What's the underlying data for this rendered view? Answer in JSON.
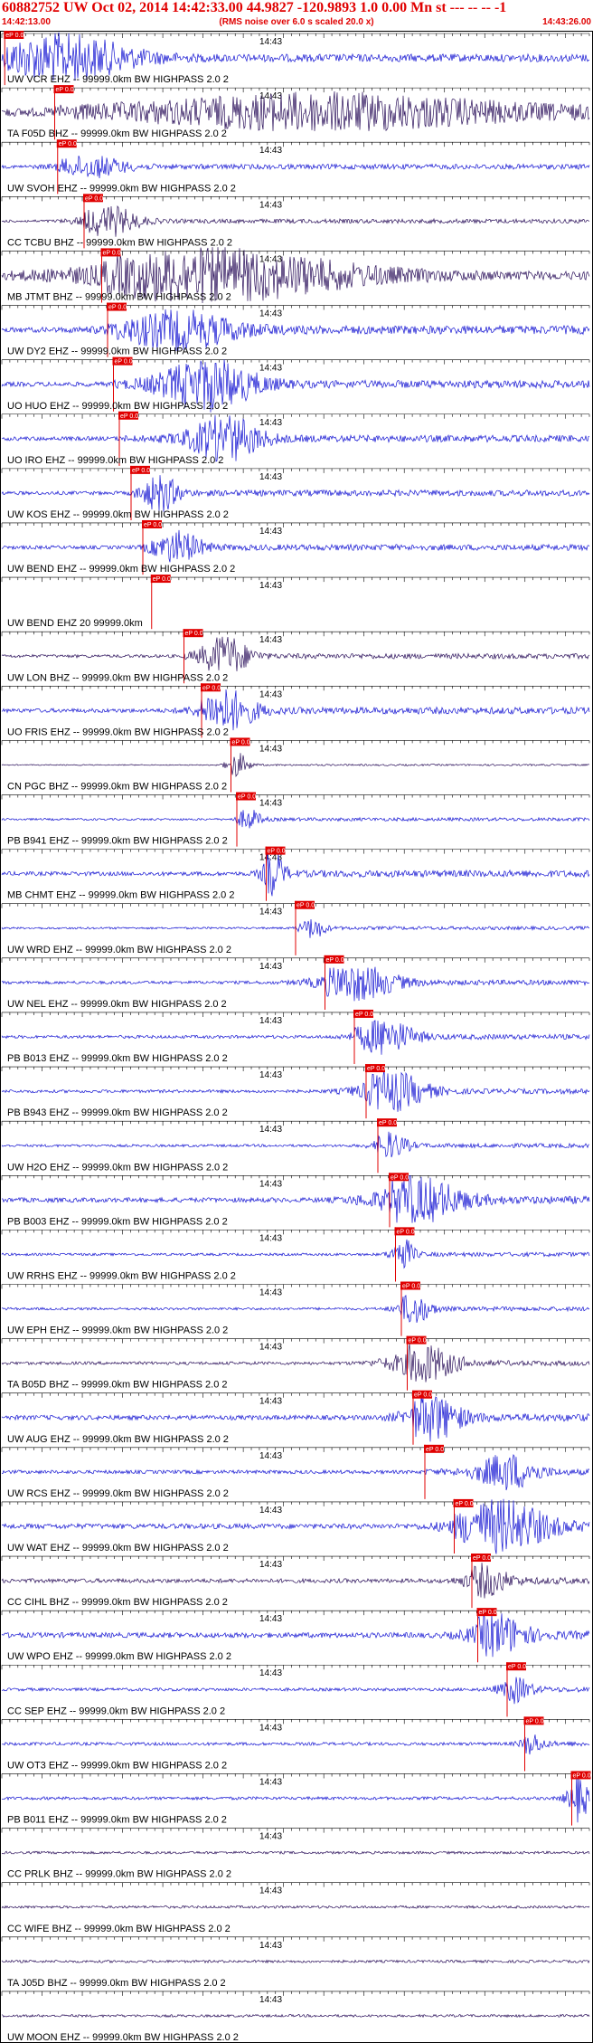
{
  "header": {
    "title": "60882752 UW Oct 02, 2014 14:42:33.00   44.9827 -120.9893  1.0 0.00 Mn st --- -- --  -1",
    "subtitle": "(RMS noise over 6.0 s scaled 20.0 x)",
    "start_time": "14:42:13.00",
    "end_time": "14:43:26.00"
  },
  "minute_marker": "14:43",
  "pick_label": "eP 0.0",
  "colors": {
    "trace_blue": "#1414d2",
    "trace_dark": "#2a0f5a",
    "pick_red": "#e00000",
    "axis": "#000000"
  },
  "traces": [
    {
      "label": "UW VCR EHZ -- 99999.0km BW  HIGHPASS  2.0  2",
      "color": "blue",
      "pick": 0.005,
      "amp": 0.45,
      "burst": [
        0.1,
        0.12,
        0.9
      ]
    },
    {
      "label": "TA F05D BHZ -- 99999.0km BW  HIGHPASS  2.0  2",
      "color": "dark",
      "pick": 0.09,
      "amp": 0.75,
      "burst": [
        0.55,
        0.3,
        0.6
      ]
    },
    {
      "label": "UW SVOH EHZ -- 99999.0km BW  HIGHPASS  2.0  2",
      "color": "blue",
      "pick": 0.095,
      "amp": 0.3,
      "burst": [
        0.15,
        0.06,
        0.4
      ]
    },
    {
      "label": "CC TCBU BHZ -- 99999.0km BW  HIGHPASS  2.0  2",
      "color": "dark",
      "pick": 0.14,
      "amp": 0.25,
      "burst": [
        0.18,
        0.05,
        0.6
      ]
    },
    {
      "label": "MB JTMT BHZ -- 99999.0km BW  HIGHPASS  2.0  2",
      "color": "dark",
      "pick": 0.17,
      "amp": 0.5,
      "burst": [
        0.35,
        0.25,
        1.0
      ]
    },
    {
      "label": "UW DY2 EHZ -- 99999.0km BW  HIGHPASS  2.0  2",
      "color": "blue",
      "pick": 0.18,
      "amp": 0.5,
      "burst": [
        0.3,
        0.1,
        0.7
      ]
    },
    {
      "label": "UO HUO EHZ -- 99999.0km BW  HIGHPASS  2.0  2",
      "color": "blue",
      "pick": 0.19,
      "amp": 0.45,
      "burst": [
        0.35,
        0.08,
        1.0
      ]
    },
    {
      "label": "UO IRO EHZ -- 99999.0km BW  HIGHPASS  2.0  2",
      "color": "blue",
      "pick": 0.2,
      "amp": 0.4,
      "burst": [
        0.38,
        0.06,
        0.9
      ]
    },
    {
      "label": "UW KOS EHZ -- 99999.0km BW  HIGHPASS  2.0  2",
      "color": "blue",
      "pick": 0.22,
      "amp": 0.35,
      "burst": [
        0.27,
        0.03,
        0.7
      ]
    },
    {
      "label": "UW BEND EHZ -- 99999.0km BW  HIGHPASS  2.0  2",
      "color": "blue",
      "pick": 0.24,
      "amp": 0.35,
      "burst": [
        0.3,
        0.04,
        0.6
      ]
    },
    {
      "label": "UW BEND EHZ 20 99999.0km",
      "color": "none",
      "pick": 0.255,
      "amp": 0.0,
      "burst": [
        0.3,
        0.04,
        0.0
      ]
    },
    {
      "label": "UW LON BHZ -- 99999.0km BW  HIGHPASS  2.0  2",
      "color": "dark",
      "pick": 0.31,
      "amp": 0.3,
      "burst": [
        0.38,
        0.04,
        0.8
      ]
    },
    {
      "label": "UO FRIS EHZ -- 99999.0km BW  HIGHPASS  2.0  2",
      "color": "blue",
      "pick": 0.34,
      "amp": 0.4,
      "burst": [
        0.38,
        0.05,
        0.8
      ]
    },
    {
      "label": "CN PGC BHZ -- 99999.0km BW  HIGHPASS  2.0  2",
      "color": "dark",
      "pick": 0.39,
      "amp": 0.1,
      "burst": [
        0.4,
        0.02,
        0.5
      ]
    },
    {
      "label": "PB B941 EHZ -- 99999.0km BW  HIGHPASS  2.0  2",
      "color": "blue",
      "pick": 0.4,
      "amp": 0.2,
      "burst": [
        0.42,
        0.02,
        0.4
      ]
    },
    {
      "label": "MB CHMT EHZ -- 99999.0km BW  HIGHPASS  2.0  2",
      "color": "blue",
      "pick": 0.45,
      "amp": 0.4,
      "burst": [
        0.46,
        0.02,
        0.9
      ]
    },
    {
      "label": "UW WRD EHZ -- 99999.0km BW  HIGHPASS  2.0  2",
      "color": "blue",
      "pick": 0.5,
      "amp": 0.2,
      "burst": [
        0.53,
        0.02,
        0.4
      ]
    },
    {
      "label": "UW NEL EHZ -- 99999.0km BW  HIGHPASS  2.0  2",
      "color": "blue",
      "pick": 0.55,
      "amp": 0.3,
      "burst": [
        0.6,
        0.07,
        0.7
      ]
    },
    {
      "label": "PB B013 EHZ -- 99999.0km BW  HIGHPASS  2.0  2",
      "color": "blue",
      "pick": 0.6,
      "amp": 0.3,
      "burst": [
        0.65,
        0.05,
        0.7
      ]
    },
    {
      "label": "PB B943 EHZ -- 99999.0km BW  HIGHPASS  2.0  2",
      "color": "blue",
      "pick": 0.62,
      "amp": 0.3,
      "burst": [
        0.66,
        0.06,
        0.8
      ]
    },
    {
      "label": "UW H2O EHZ -- 99999.0km BW  HIGHPASS  2.0  2",
      "color": "blue",
      "pick": 0.64,
      "amp": 0.25,
      "burst": [
        0.66,
        0.03,
        0.5
      ]
    },
    {
      "label": "PB B003 EHZ -- 99999.0km BW  HIGHPASS  2.0  2",
      "color": "blue",
      "pick": 0.66,
      "amp": 0.45,
      "burst": [
        0.7,
        0.08,
        0.9
      ]
    },
    {
      "label": "UW RRHS EHZ -- 99999.0km BW  HIGHPASS  2.0  2",
      "color": "blue",
      "pick": 0.67,
      "amp": 0.25,
      "burst": [
        0.68,
        0.02,
        0.7
      ]
    },
    {
      "label": "UW EPH EHZ -- 99999.0km BW  HIGHPASS  2.0  2",
      "color": "blue",
      "pick": 0.68,
      "amp": 0.25,
      "burst": [
        0.7,
        0.03,
        0.6
      ]
    },
    {
      "label": "TA B05D BHZ -- 99999.0km BW  HIGHPASS  2.0  2",
      "color": "dark",
      "pick": 0.69,
      "amp": 0.3,
      "burst": [
        0.71,
        0.06,
        0.8
      ]
    },
    {
      "label": "UW AUG EHZ -- 99999.0km BW  HIGHPASS  2.0  2",
      "color": "blue",
      "pick": 0.7,
      "amp": 0.45,
      "burst": [
        0.73,
        0.05,
        0.9
      ]
    },
    {
      "label": "UW RCS EHZ -- 99999.0km BW  HIGHPASS  2.0  2",
      "color": "blue",
      "pick": 0.72,
      "amp": 0.35,
      "burst": [
        0.86,
        0.05,
        0.7
      ]
    },
    {
      "label": "UW WAT EHZ -- 99999.0km BW  HIGHPASS  2.0  2",
      "color": "blue",
      "pick": 0.77,
      "amp": 0.5,
      "burst": [
        0.85,
        0.08,
        1.0
      ]
    },
    {
      "label": "CC CIHL BHZ -- 99999.0km BW  HIGHPASS  2.0  2",
      "color": "dark",
      "pick": 0.8,
      "amp": 0.4,
      "burst": [
        0.82,
        0.04,
        0.6
      ]
    },
    {
      "label": "UW WPO EHZ -- 99999.0km BW  HIGHPASS  2.0  2",
      "color": "blue",
      "pick": 0.81,
      "amp": 0.5,
      "burst": [
        0.84,
        0.05,
        0.8
      ]
    },
    {
      "label": "CC SEP EHZ -- 99999.0km BW  HIGHPASS  2.0  2",
      "color": "blue",
      "pick": 0.86,
      "amp": 0.3,
      "burst": [
        0.87,
        0.03,
        0.5
      ]
    },
    {
      "label": "UW OT3 EHZ -- 99999.0km BW  HIGHPASS  2.0  2",
      "color": "blue",
      "pick": 0.89,
      "amp": 0.3,
      "burst": [
        0.9,
        0.02,
        0.4
      ]
    },
    {
      "label": "PB B011 EHZ -- 99999.0km BW  HIGHPASS  2.0  2",
      "color": "blue",
      "pick": 0.97,
      "amp": 0.3,
      "burst": [
        0.98,
        0.02,
        0.9
      ]
    },
    {
      "label": "CC PRLK BHZ -- 99999.0km BW  HIGHPASS  2.0  2",
      "color": "dark",
      "pick": null,
      "amp": 0.15,
      "burst": [
        0.5,
        0.0,
        0.0
      ]
    },
    {
      "label": "CC WIFE BHZ -- 99999.0km BW  HIGHPASS  2.0  2",
      "color": "dark",
      "pick": null,
      "amp": 0.15,
      "burst": [
        0.5,
        0.0,
        0.0
      ]
    },
    {
      "label": "TA J05D BHZ -- 99999.0km BW  HIGHPASS  2.0  2",
      "color": "dark",
      "pick": null,
      "amp": 0.15,
      "burst": [
        0.5,
        0.0,
        0.0
      ]
    },
    {
      "label": "UW MOON EHZ -- 99999.0km BW  HIGHPASS  2.0  2",
      "color": "dark",
      "pick": null,
      "amp": 0.15,
      "burst": [
        0.5,
        0.0,
        0.0
      ]
    }
  ]
}
